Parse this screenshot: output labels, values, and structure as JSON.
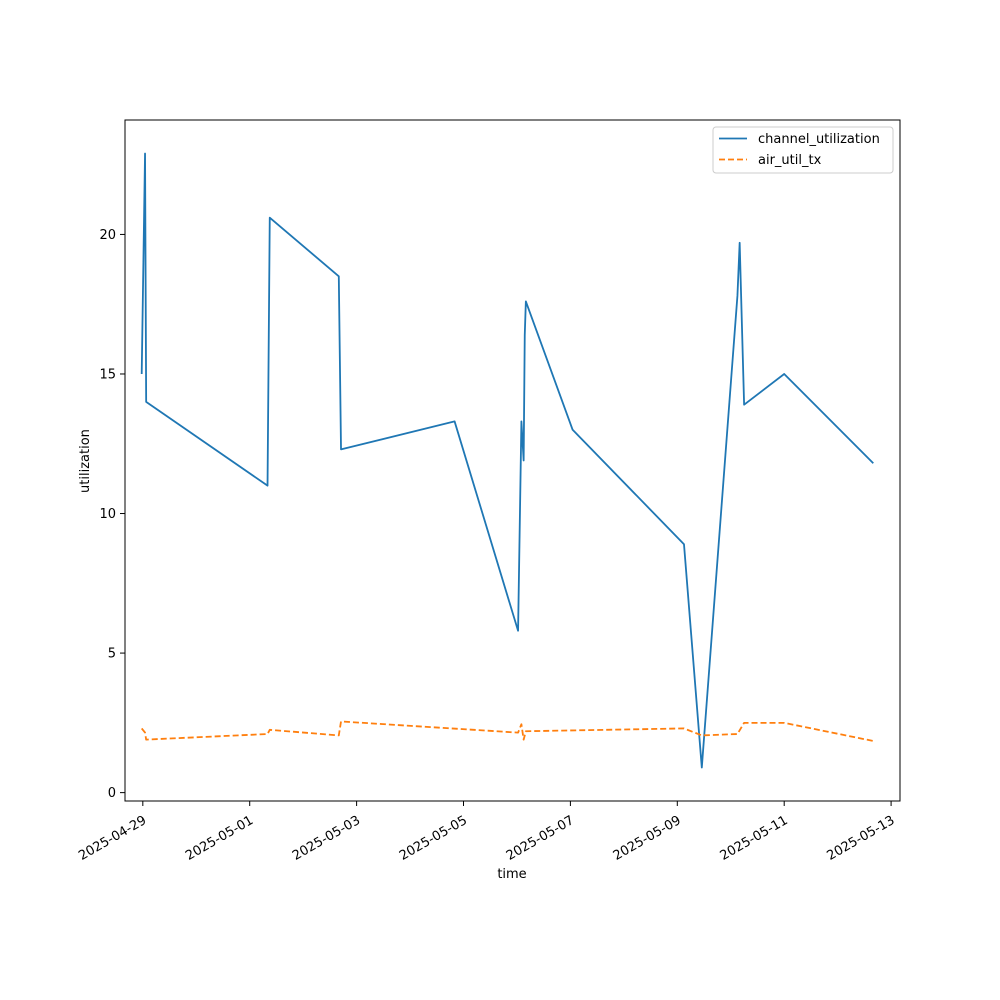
{
  "chart_data": {
    "type": "line",
    "title": "",
    "xlabel": "time",
    "ylabel": "utilization",
    "x_axis_type": "date",
    "xlim": [
      "2025-04-28T16:00",
      "2025-05-13T04:00"
    ],
    "ylim": [
      -0.3,
      24.1
    ],
    "x_ticks": [
      "2025-04-29",
      "2025-05-01",
      "2025-05-03",
      "2025-05-05",
      "2025-05-07",
      "2025-05-09",
      "2025-05-11",
      "2025-05-13"
    ],
    "y_ticks": [
      0,
      5,
      10,
      15,
      20
    ],
    "grid": false,
    "legend": "top-right",
    "series": [
      {
        "name": "channel_utilization",
        "color": "#1f77b4",
        "style": "solid",
        "points": [
          [
            "2025-04-28T23:30",
            15.0
          ],
          [
            "2025-04-29T01:00",
            22.9
          ],
          [
            "2025-04-29T01:30",
            14.0
          ],
          [
            "2025-05-01T08:00",
            11.0
          ],
          [
            "2025-05-01T09:00",
            20.6
          ],
          [
            "2025-05-02T16:00",
            18.5
          ],
          [
            "2025-05-02T17:00",
            12.3
          ],
          [
            "2025-05-04T20:00",
            13.3
          ],
          [
            "2025-05-06T00:30",
            5.8
          ],
          [
            "2025-05-06T02:00",
            13.3
          ],
          [
            "2025-05-06T03:00",
            11.9
          ],
          [
            "2025-05-06T03:30",
            16.4
          ],
          [
            "2025-05-06T04:00",
            17.6
          ],
          [
            "2025-05-07T01:00",
            13.0
          ],
          [
            "2025-05-09T03:00",
            8.9
          ],
          [
            "2025-05-09T11:00",
            0.9
          ],
          [
            "2025-05-10T03:00",
            17.8
          ],
          [
            "2025-05-10T04:00",
            19.7
          ],
          [
            "2025-05-10T06:00",
            13.9
          ],
          [
            "2025-05-11T00:00",
            15.0
          ],
          [
            "2025-05-12T16:00",
            11.8
          ]
        ]
      },
      {
        "name": "air_util_tx",
        "color": "#ff7f0e",
        "style": "dashed",
        "points": [
          [
            "2025-04-28T23:30",
            2.3
          ],
          [
            "2025-04-29T01:00",
            2.15
          ],
          [
            "2025-04-29T01:30",
            1.9
          ],
          [
            "2025-05-01T08:00",
            2.1
          ],
          [
            "2025-05-01T09:00",
            2.25
          ],
          [
            "2025-05-02T16:00",
            2.05
          ],
          [
            "2025-05-02T17:00",
            2.55
          ],
          [
            "2025-05-06T00:30",
            2.15
          ],
          [
            "2025-05-06T02:00",
            2.45
          ],
          [
            "2025-05-06T03:00",
            1.9
          ],
          [
            "2025-05-06T04:00",
            2.2
          ],
          [
            "2025-05-09T03:00",
            2.3
          ],
          [
            "2025-05-09T11:00",
            2.05
          ],
          [
            "2025-05-10T03:00",
            2.1
          ],
          [
            "2025-05-10T06:00",
            2.5
          ],
          [
            "2025-05-11T00:00",
            2.5
          ],
          [
            "2025-05-12T16:00",
            1.85
          ]
        ]
      }
    ]
  }
}
